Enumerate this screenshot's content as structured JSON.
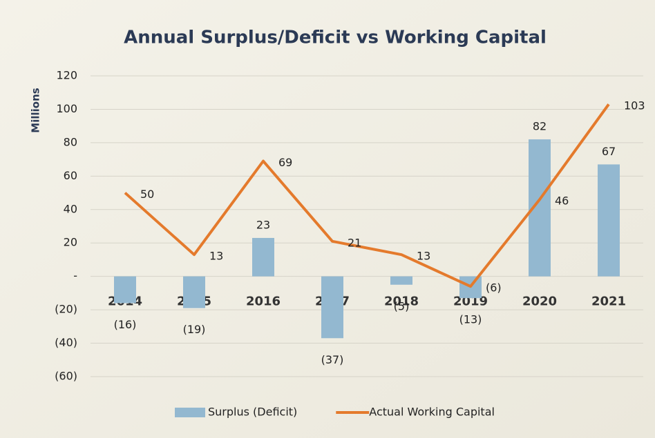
{
  "chart_data": {
    "type": "bar",
    "title": "Annual Surplus/Deficit vs Working Capital",
    "y_label": "Millions",
    "categories": [
      "2014",
      "2015",
      "2016",
      "2017",
      "2018",
      "2019",
      "2020",
      "2021"
    ],
    "series": [
      {
        "name": "Surplus (Deficit)",
        "type": "bar",
        "color": "#93b8d0",
        "values": [
          -16,
          -19,
          23,
          -37,
          -5,
          -13,
          82,
          67
        ],
        "value_labels": [
          "(16)",
          "(19)",
          "23",
          "(37)",
          "(5)",
          "(13)",
          "82",
          "67"
        ]
      },
      {
        "name": "Actual Working Capital",
        "type": "line",
        "color": "#e47a2c",
        "values": [
          50,
          13,
          69,
          21,
          13,
          -6,
          46,
          103
        ],
        "value_labels": [
          "50",
          "13",
          "69",
          "21",
          "13",
          "(6)",
          "46",
          "103"
        ]
      }
    ],
    "ylim": [
      -60,
      120
    ],
    "yticks": [
      {
        "value": -60,
        "label": "(60)"
      },
      {
        "value": -40,
        "label": "(40)"
      },
      {
        "value": -20,
        "label": "(20)"
      },
      {
        "value": 0,
        "label": "-"
      },
      20,
      40,
      60,
      80,
      100,
      120
    ],
    "grid": true,
    "legend": "bottom"
  }
}
